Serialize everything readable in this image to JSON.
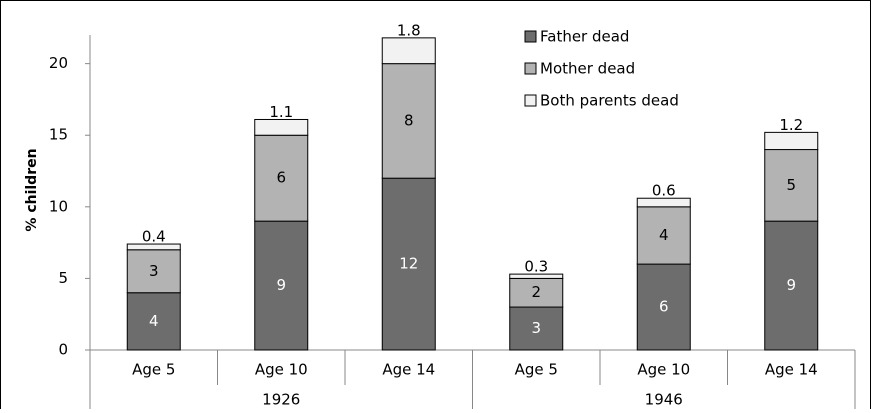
{
  "chart_data": {
    "type": "stacked-bar",
    "y_label": "% children",
    "categories": [
      "Age 5",
      "Age 10",
      "Age 14",
      "Age 5",
      "Age 10",
      "Age 14"
    ],
    "groups": [
      "1926",
      "1946"
    ],
    "series": [
      {
        "name": "Father dead",
        "color": "#6d6d6d",
        "values": [
          4,
          9,
          12,
          3,
          6,
          9
        ]
      },
      {
        "name": "Mother dead",
        "color": "#b3b3b3",
        "values": [
          3,
          6,
          8,
          2,
          4,
          5
        ]
      },
      {
        "name": "Both parents dead",
        "color": "#f2f2f2",
        "values": [
          0.4,
          1.1,
          1.8,
          0.3,
          0.6,
          1.2
        ]
      }
    ],
    "ylim": [
      0,
      22
    ],
    "yticks": [
      0,
      5,
      10,
      15,
      20
    ],
    "legend": "top-right"
  }
}
